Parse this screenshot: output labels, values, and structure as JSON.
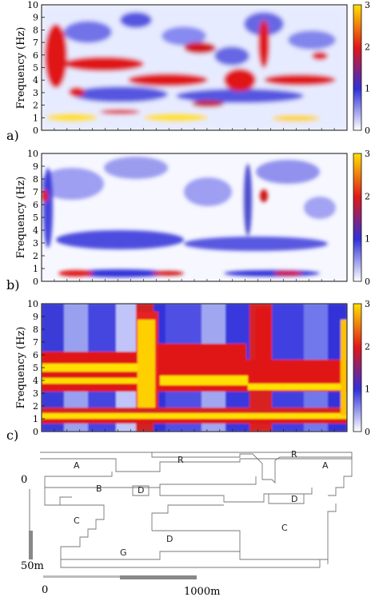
{
  "panels": [
    {
      "id": "a",
      "label": "a)",
      "ylabel": "Frequency (Hz)",
      "yticks": [
        "0",
        "1",
        "2",
        "3",
        "4",
        "5",
        "6",
        "7",
        "8",
        "9",
        "10"
      ],
      "cticks": [
        "0",
        "1",
        "2",
        "3"
      ]
    },
    {
      "id": "b",
      "label": "b)",
      "ylabel": "Frequency (Hz)",
      "yticks": [
        "0",
        "1",
        "2",
        "3",
        "4",
        "5",
        "6",
        "7",
        "8",
        "9",
        "10"
      ],
      "cticks": [
        "0",
        "1",
        "2",
        "3"
      ]
    },
    {
      "id": "c",
      "label": "c)",
      "ylabel": "Frequency (Hz)",
      "yticks": [
        "0",
        "1",
        "2",
        "3",
        "4",
        "5",
        "6",
        "7",
        "8",
        "9",
        "10"
      ],
      "cticks": [
        "0",
        "1",
        "2",
        "3"
      ]
    }
  ],
  "colormap": [
    "#ffffff",
    "#3030d8",
    "#e01818",
    "#ffe000"
  ],
  "cross_section": {
    "zone_labels": [
      "A",
      "R",
      "B",
      "D",
      "R",
      "A",
      "D",
      "C",
      "D",
      "C",
      "G"
    ],
    "depth_scale": {
      "top": "0",
      "bottom": "50m"
    },
    "horizontal_scale": {
      "left": "0",
      "right": "1000m"
    }
  }
}
